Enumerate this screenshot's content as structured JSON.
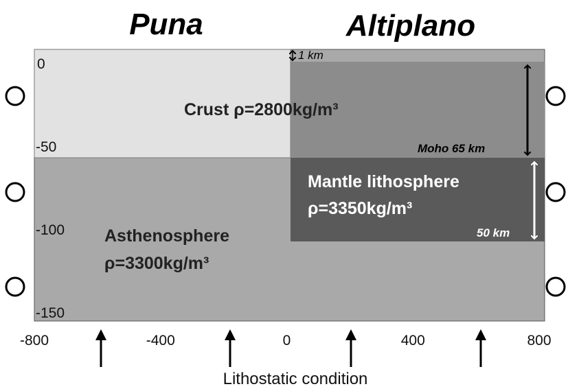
{
  "header": {
    "left_title": "Puna",
    "right_title": "Altiplano"
  },
  "layers": {
    "crust": "Crust ρ=2800kg/m³",
    "mantle_lithosphere": {
      "name": "Mantle lithosphere",
      "density": "ρ=3350kg/m³"
    },
    "asthenosphere": {
      "name": "Asthenosphere",
      "density": "ρ=3300kg/m³"
    }
  },
  "annotations": {
    "top_offset": "1 km",
    "moho": "Moho  65 km",
    "lithosphere_thickness": "50 km"
  },
  "x_axis": {
    "ticks": [
      -800,
      -400,
      0,
      400,
      800
    ]
  },
  "y_axis": {
    "ticks": [
      0,
      -50,
      -100,
      -150
    ]
  },
  "footer": {
    "label": "Lithostatic condition"
  }
}
